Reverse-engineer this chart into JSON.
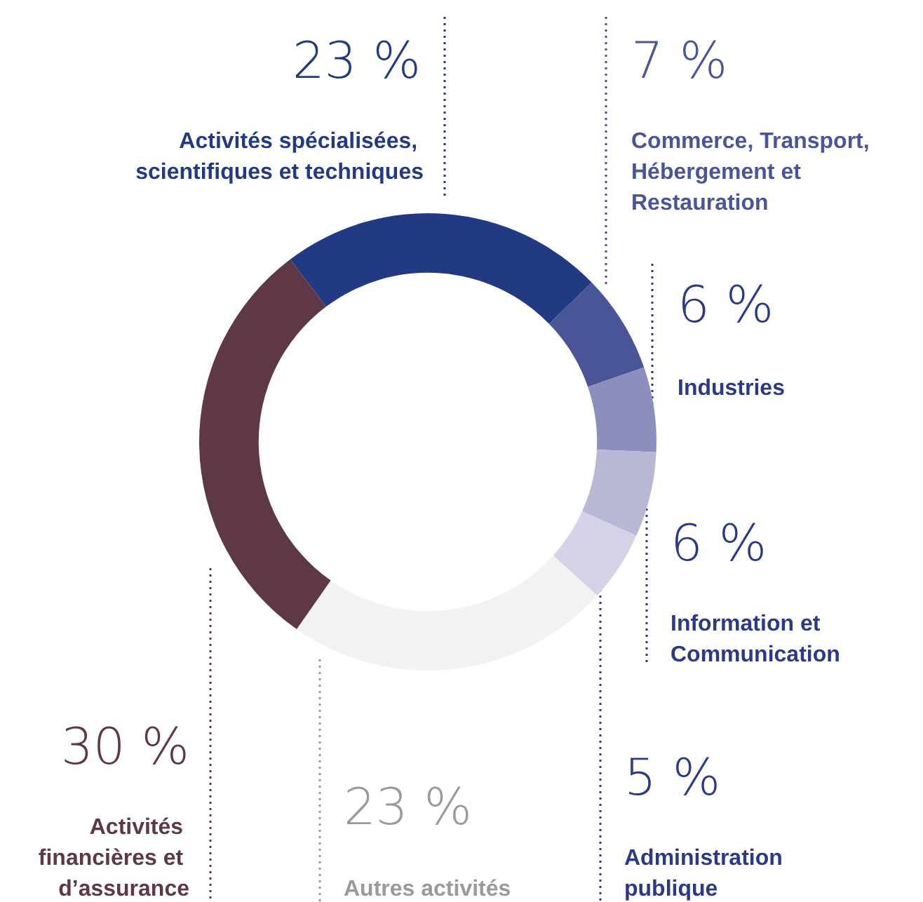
{
  "chart_data": {
    "type": "donut",
    "categories": [
      "Activités spécialisées, scientifiques et techniques",
      "Commerce, Transport, Hébergement et Restauration",
      "Industries",
      "Information et Communication",
      "Administration publique",
      "Autres activités",
      "Activités financières et d’assurance"
    ],
    "values": [
      23,
      7,
      6,
      6,
      5,
      23,
      30
    ],
    "value_labels": [
      "23 %",
      "7 %",
      "6 %",
      "6 %",
      "5 %",
      "23 %",
      "30 %"
    ],
    "colors": [
      "#213a83",
      "#4a5597",
      "#8c8fbd",
      "#b7b7d6",
      "#d3d2e6",
      "#f2f2f2",
      "#5e3847"
    ],
    "legend": false
  }
}
